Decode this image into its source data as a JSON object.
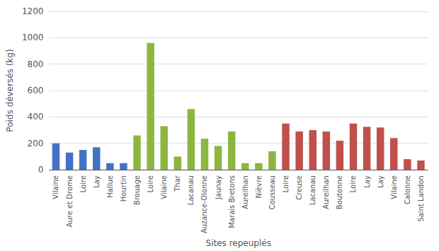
{
  "chart_data": {
    "type": "bar",
    "xlabel": "Sites repeuplés",
    "ylabel": "Poids déversés (kg)",
    "categories": [
      "Vilaine",
      "Aure et Drome",
      "Loire",
      "Lay",
      "Hallue",
      "Hourtin",
      "Brouage",
      "Loire",
      "Vilaine",
      "Thar",
      "Lacanau",
      "Auzance-Olonne",
      "Jaunay",
      "Marais Bretons",
      "Aureilhan",
      "Nièvre",
      "Cousseau",
      "Loire",
      "Creuse",
      "Lacanau",
      "Aureilhan",
      "Boutonne",
      "Loire",
      "Lay",
      "Lay",
      "Vilaine",
      "Calonne",
      "Saint Landon"
    ],
    "values": [
      200,
      130,
      150,
      170,
      50,
      50,
      260,
      960,
      330,
      100,
      460,
      235,
      180,
      290,
      50,
      50,
      140,
      350,
      290,
      300,
      290,
      220,
      350,
      325,
      320,
      240,
      80,
      70
    ],
    "colors": [
      "#4472C4",
      "#4472C4",
      "#4472C4",
      "#4472C4",
      "#4472C4",
      "#4472C4",
      "#8db641",
      "#8db641",
      "#8db641",
      "#8db641",
      "#8db641",
      "#8db641",
      "#8db641",
      "#8db641",
      "#8db641",
      "#8db641",
      "#8db641",
      "#c0504d",
      "#c0504d",
      "#c0504d",
      "#c0504d",
      "#c0504d",
      "#c0504d",
      "#c0504d",
      "#c0504d",
      "#c0504d",
      "#c0504d",
      "#c0504d"
    ],
    "ylim": [
      0,
      1200
    ],
    "yticks": [
      0,
      200,
      400,
      600,
      800,
      1000,
      1200
    ],
    "grid": true
  }
}
